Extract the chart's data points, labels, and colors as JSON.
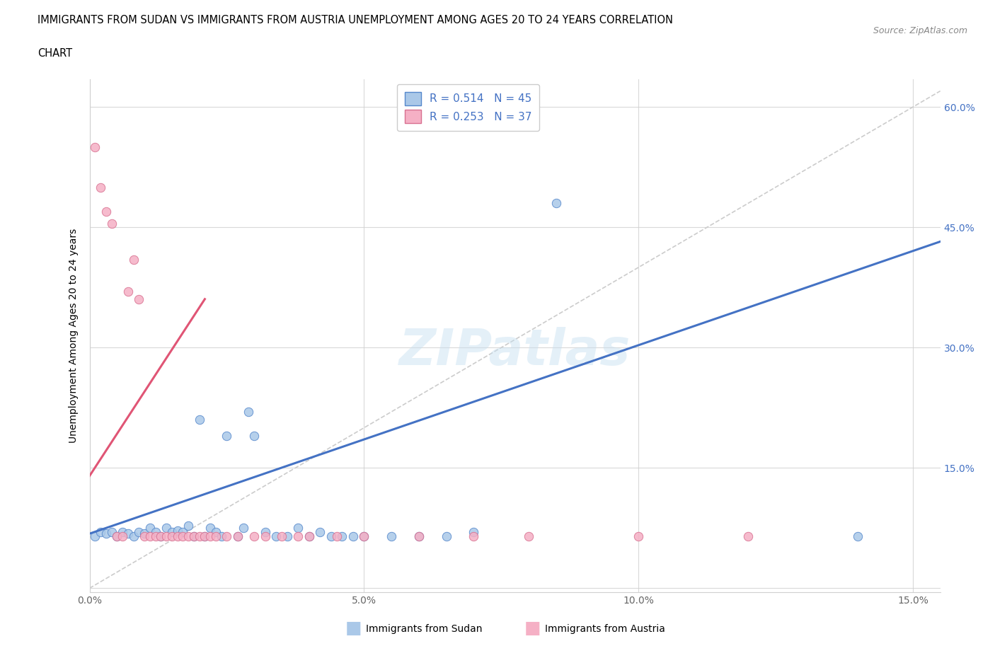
{
  "title_line1": "IMMIGRANTS FROM SUDAN VS IMMIGRANTS FROM AUSTRIA UNEMPLOYMENT AMONG AGES 20 TO 24 YEARS CORRELATION",
  "title_line2": "CHART",
  "source": "Source: ZipAtlas.com",
  "ylabel": "Unemployment Among Ages 20 to 24 years",
  "xlim": [
    0.0,
    0.155
  ],
  "ylim": [
    -0.005,
    0.635
  ],
  "xticks": [
    0.0,
    0.05,
    0.1,
    0.15
  ],
  "xtick_labels": [
    "0.0%",
    "5.0%",
    "10.0%",
    "15.0%"
  ],
  "yticks": [
    0.0,
    0.15,
    0.3,
    0.45,
    0.6
  ],
  "ytick_labels_right": [
    "15.0%",
    "30.0%",
    "45.0%",
    "60.0%"
  ],
  "sudan_color": "#aac8e8",
  "austria_color": "#f5b0c5",
  "sudan_edge_color": "#5588cc",
  "austria_edge_color": "#d87090",
  "sudan_line_color": "#4472c4",
  "austria_line_color": "#e05575",
  "legend_text_color": "#4472c4",
  "sudan_R": 0.514,
  "sudan_N": 45,
  "austria_R": 0.253,
  "austria_N": 37,
  "sudan_slope": 2.35,
  "sudan_intercept": 0.068,
  "austria_slope": 10.5,
  "austria_intercept": 0.14,
  "austria_line_x_start": 0.0,
  "austria_line_x_end": 0.021,
  "watermark": "ZIPatlas",
  "background_color": "#ffffff",
  "sudan_x": [
    0.001,
    0.002,
    0.003,
    0.004,
    0.005,
    0.006,
    0.007,
    0.008,
    0.009,
    0.01,
    0.011,
    0.012,
    0.013,
    0.014,
    0.015,
    0.016,
    0.017,
    0.018,
    0.019,
    0.02,
    0.021,
    0.022,
    0.023,
    0.024,
    0.025,
    0.027,
    0.028,
    0.029,
    0.03,
    0.032,
    0.034,
    0.036,
    0.038,
    0.04,
    0.042,
    0.044,
    0.046,
    0.048,
    0.05,
    0.055,
    0.06,
    0.065,
    0.07,
    0.085,
    0.14
  ],
  "sudan_y": [
    0.065,
    0.07,
    0.068,
    0.07,
    0.065,
    0.07,
    0.068,
    0.065,
    0.07,
    0.068,
    0.075,
    0.07,
    0.065,
    0.075,
    0.07,
    0.072,
    0.07,
    0.078,
    0.065,
    0.21,
    0.065,
    0.075,
    0.07,
    0.065,
    0.19,
    0.065,
    0.075,
    0.22,
    0.19,
    0.07,
    0.065,
    0.065,
    0.075,
    0.065,
    0.07,
    0.065,
    0.065,
    0.065,
    0.065,
    0.065,
    0.065,
    0.065,
    0.07,
    0.48,
    0.065
  ],
  "austria_x": [
    0.001,
    0.002,
    0.003,
    0.004,
    0.005,
    0.006,
    0.007,
    0.008,
    0.009,
    0.01,
    0.011,
    0.012,
    0.013,
    0.014,
    0.015,
    0.016,
    0.017,
    0.018,
    0.019,
    0.02,
    0.021,
    0.022,
    0.023,
    0.025,
    0.027,
    0.03,
    0.032,
    0.035,
    0.038,
    0.04,
    0.045,
    0.05,
    0.06,
    0.07,
    0.08,
    0.1,
    0.12
  ],
  "austria_y": [
    0.55,
    0.5,
    0.47,
    0.455,
    0.065,
    0.065,
    0.37,
    0.41,
    0.36,
    0.065,
    0.065,
    0.065,
    0.065,
    0.065,
    0.065,
    0.065,
    0.065,
    0.065,
    0.065,
    0.065,
    0.065,
    0.065,
    0.065,
    0.065,
    0.065,
    0.065,
    0.065,
    0.065,
    0.065,
    0.065,
    0.065,
    0.065,
    0.065,
    0.065,
    0.065,
    0.065,
    0.065
  ]
}
